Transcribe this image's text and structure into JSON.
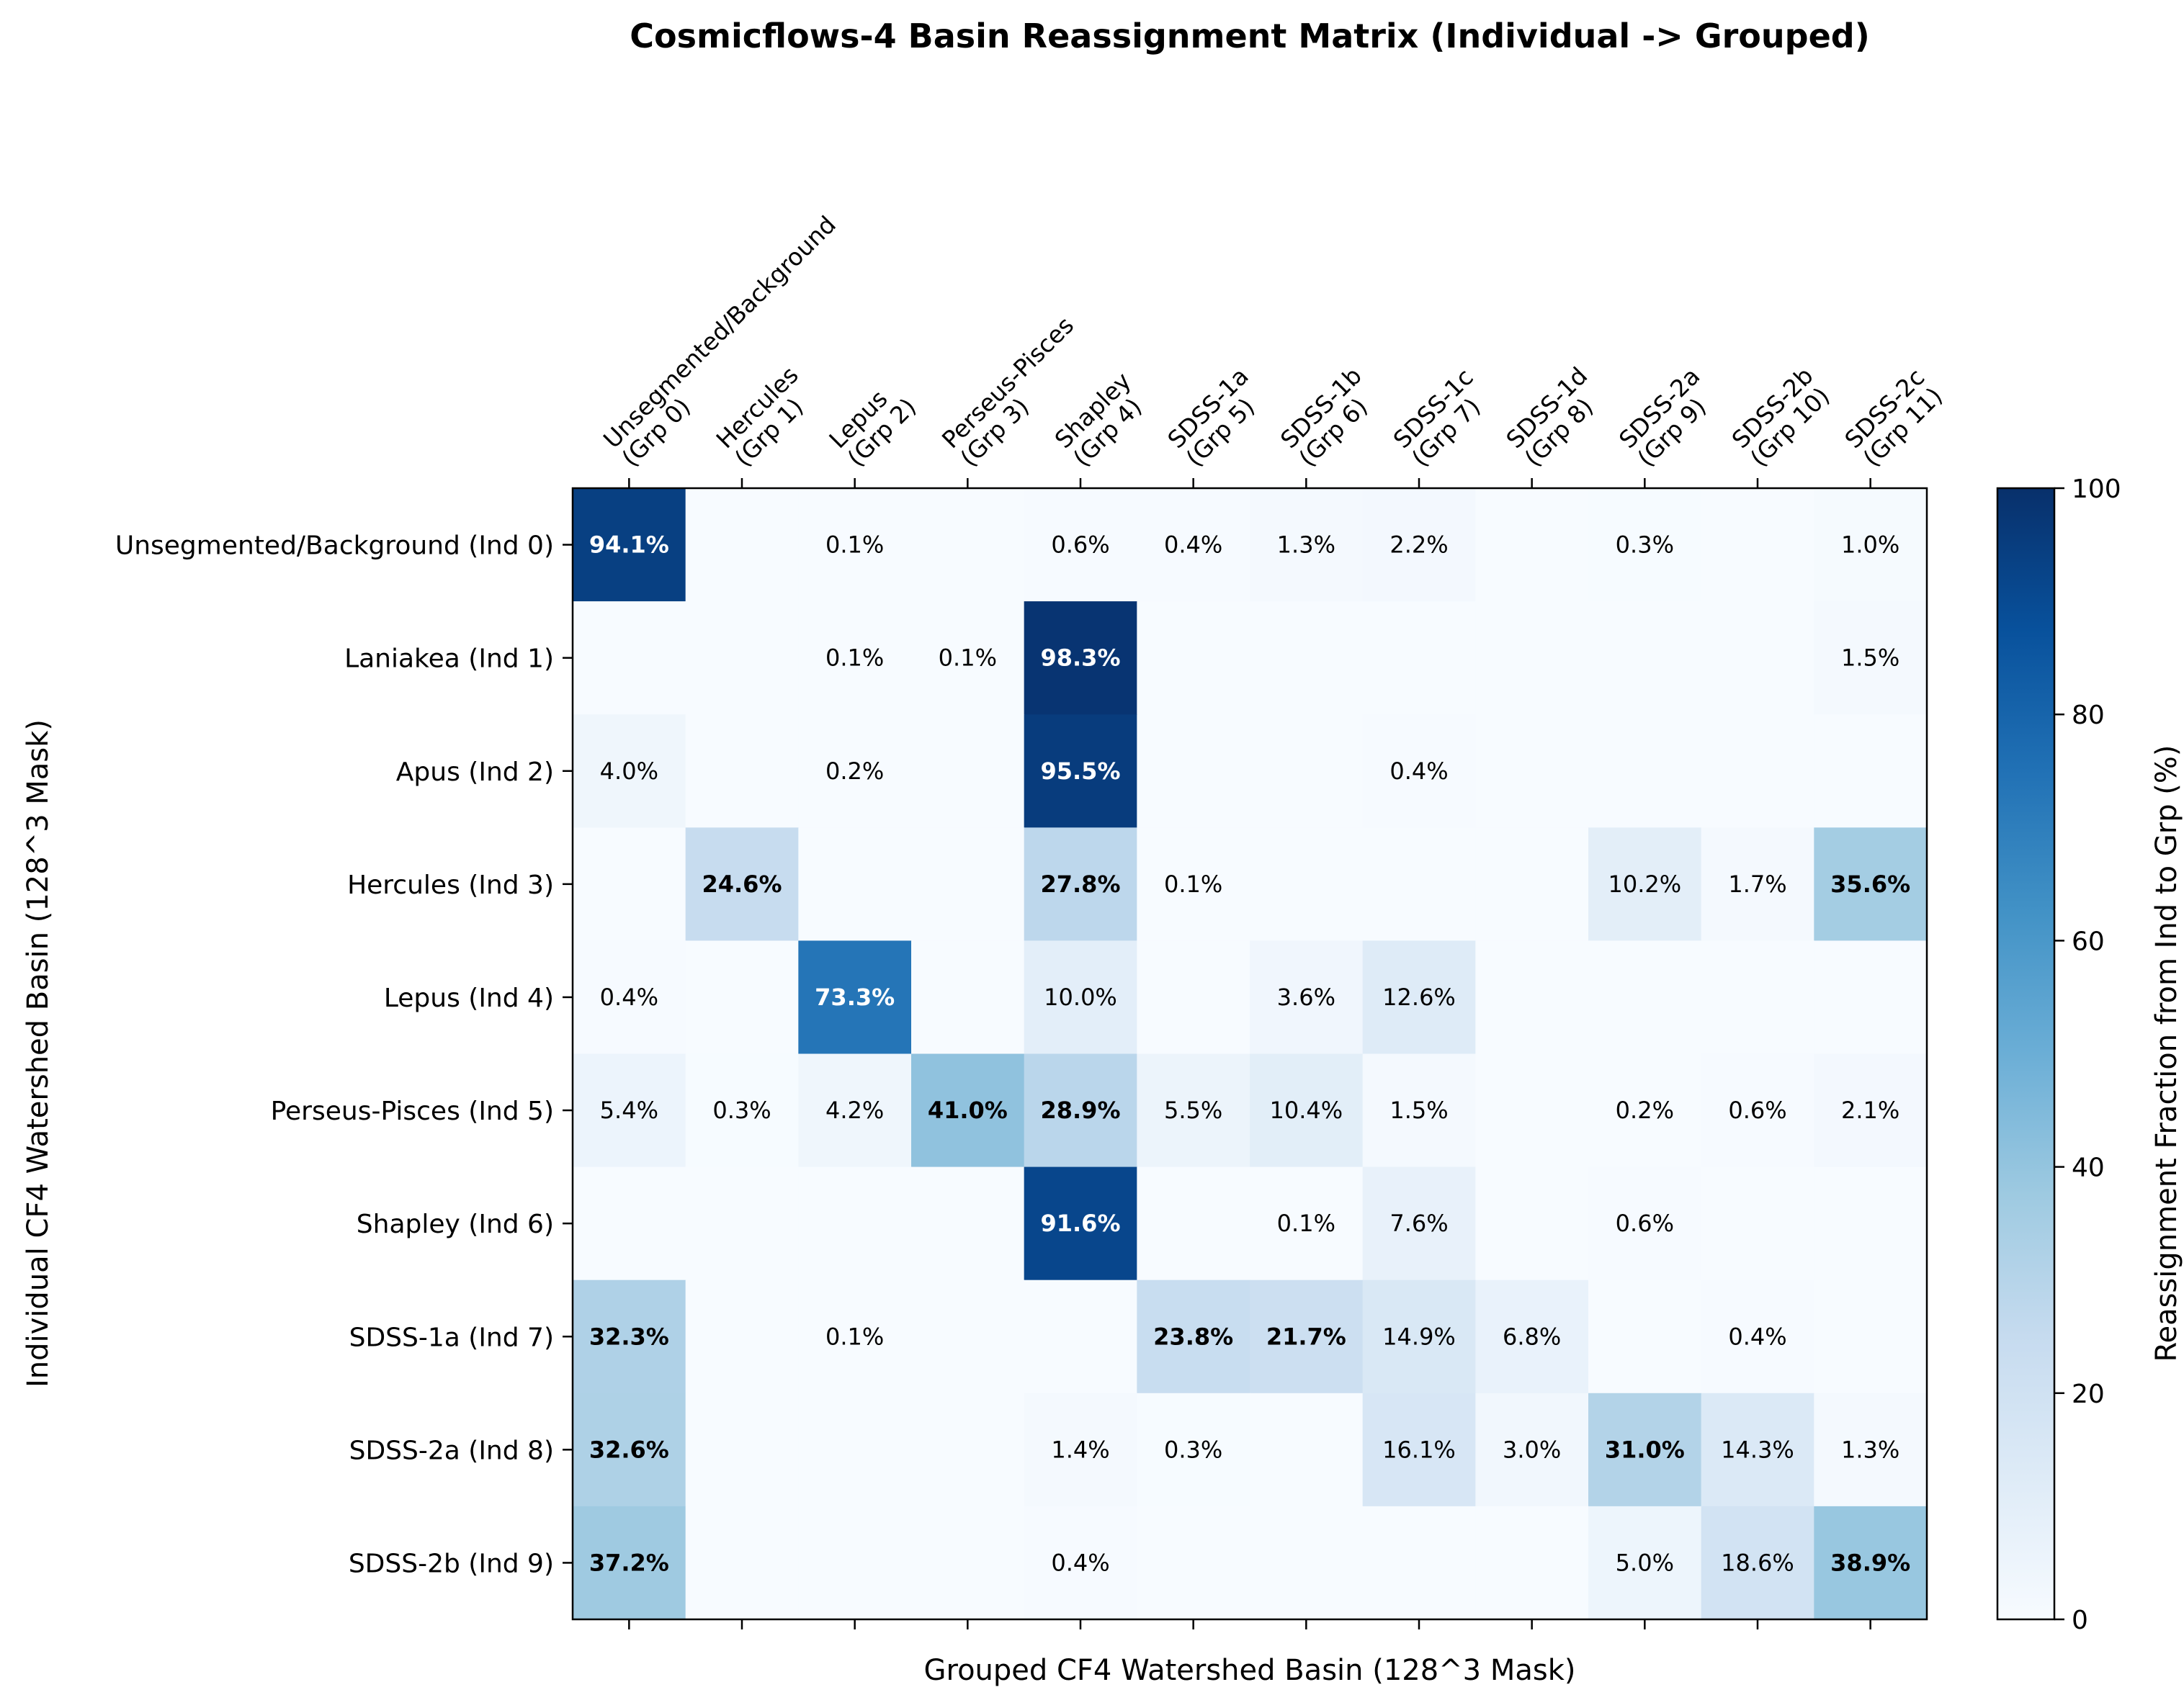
{
  "chart_data": {
    "type": "heatmap",
    "title": "Cosmicflows-4 Basin Reassignment Matrix (Individual -> Grouped)",
    "xlabel": "Grouped CF4 Watershed Basin (128^3 Mask)",
    "ylabel": "Individual CF4 Watershed Basin (128^3 Mask)",
    "colorbar_label": "Reassignment Fraction from Ind to Grp (%)",
    "colormap": "Blues",
    "vmin": 0,
    "vmax": 100,
    "colorbar_ticks": [
      "0",
      "20",
      "40",
      "60",
      "80",
      "100"
    ],
    "x_labels": [
      [
        "Unsegmented/Background",
        "(Grp 0)"
      ],
      [
        "Hercules",
        "(Grp 1)"
      ],
      [
        "Lepus",
        "(Grp 2)"
      ],
      [
        "Perseus-Pisces",
        "(Grp 3)"
      ],
      [
        "Shapley",
        "(Grp 4)"
      ],
      [
        "SDSS-1a",
        "(Grp 5)"
      ],
      [
        "SDSS-1b",
        "(Grp 6)"
      ],
      [
        "SDSS-1c",
        "(Grp 7)"
      ],
      [
        "SDSS-1d",
        "(Grp 8)"
      ],
      [
        "SDSS-2a",
        "(Grp 9)"
      ],
      [
        "SDSS-2b",
        "(Grp 10)"
      ],
      [
        "SDSS-2c",
        "(Grp 11)"
      ]
    ],
    "y_labels": [
      "Unsegmented/Background (Ind 0)",
      "Laniakea (Ind 1)",
      "Apus (Ind 2)",
      "Hercules (Ind 3)",
      "Lepus (Ind 4)",
      "Perseus-Pisces (Ind 5)",
      "Shapley (Ind 6)",
      "SDSS-1a (Ind 7)",
      "SDSS-2a (Ind 8)",
      "SDSS-2b (Ind 9)"
    ],
    "values": [
      [
        94.1,
        0,
        0.1,
        0,
        0.6,
        0.4,
        1.3,
        2.2,
        0,
        0.3,
        0,
        1.0
      ],
      [
        0,
        0,
        0.1,
        0.1,
        98.3,
        0,
        0,
        0,
        0,
        0,
        0,
        1.5
      ],
      [
        4.0,
        0,
        0.2,
        0,
        95.5,
        0,
        0,
        0.4,
        0,
        0,
        0,
        0
      ],
      [
        0,
        24.6,
        0,
        0,
        27.8,
        0.1,
        0,
        0,
        0,
        10.2,
        1.7,
        35.6
      ],
      [
        0.4,
        0,
        73.3,
        0,
        10.0,
        0,
        3.6,
        12.6,
        0,
        0,
        0,
        0
      ],
      [
        5.4,
        0.3,
        4.2,
        41.0,
        28.9,
        5.5,
        10.4,
        1.5,
        0,
        0.2,
        0.6,
        2.1
      ],
      [
        0,
        0,
        0,
        0,
        91.6,
        0,
        0.1,
        7.6,
        0,
        0.6,
        0,
        0
      ],
      [
        32.3,
        0,
        0.1,
        0,
        0,
        23.8,
        21.7,
        14.9,
        6.8,
        0,
        0.4,
        0
      ],
      [
        32.6,
        0,
        0,
        0,
        1.4,
        0.3,
        0,
        16.1,
        3.0,
        31.0,
        14.3,
        1.3
      ],
      [
        37.2,
        0,
        0,
        0,
        0.4,
        0,
        0,
        0,
        0,
        5.0,
        18.6,
        38.9
      ]
    ],
    "value_format": "one decimal with %, blank when 0",
    "bold_threshold": 20,
    "white_text_threshold": 60
  }
}
